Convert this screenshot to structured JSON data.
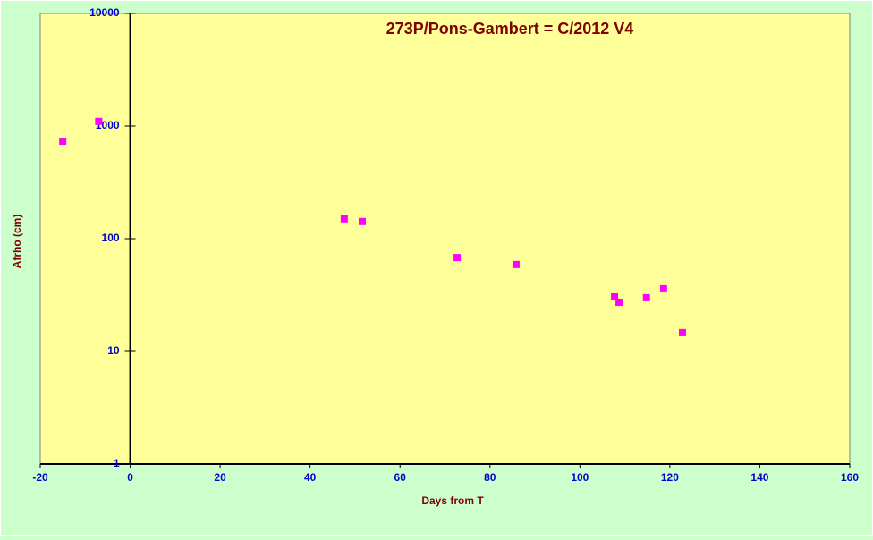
{
  "chart_data": {
    "type": "scatter",
    "title": "273P/Pons-Gambert  = C/2012 V4",
    "x_label": "Days from  T",
    "y_label": "Afrho (cm)",
    "series": [
      {
        "color": "#ff00ff",
        "x": [
          -15,
          -7,
          47.6,
          51.6,
          72.7,
          85.8,
          107.7,
          108.7,
          114.8,
          118.6,
          122.8
        ],
        "values": [
          733,
          1100,
          150,
          142,
          68,
          59,
          30.5,
          27.3,
          30,
          36,
          14.7
        ]
      }
    ],
    "xlim": [
      -20,
      160
    ],
    "xticks": [
      -20,
      0,
      20,
      40,
      60,
      80,
      100,
      120,
      140,
      160
    ],
    "ylim": [
      1,
      10000
    ],
    "yticks": [
      1,
      10,
      100,
      1000,
      10000
    ],
    "ylog": true
  }
}
